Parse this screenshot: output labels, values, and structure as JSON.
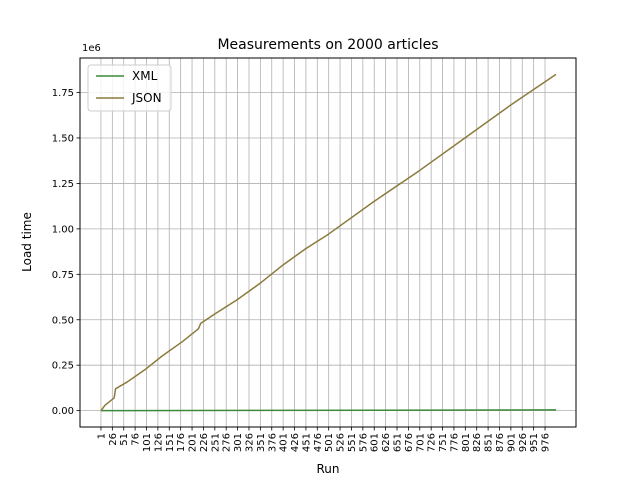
{
  "chart_data": {
    "type": "line",
    "title": "Measurements on 2000 articles",
    "xlabel": "Run",
    "ylabel": "Load time",
    "y_offset_label": "1e6",
    "x_tick_labels": [
      "1",
      "26",
      "51",
      "76",
      "101",
      "126",
      "151",
      "176",
      "201",
      "226",
      "251",
      "276",
      "301",
      "326",
      "351",
      "376",
      "401",
      "426",
      "451",
      "476",
      "501",
      "526",
      "551",
      "576",
      "601",
      "626",
      "651",
      "676",
      "701",
      "726",
      "751",
      "776",
      "801",
      "826",
      "851",
      "876",
      "901",
      "926",
      "951",
      "976"
    ],
    "y_tick_labels": [
      "0.00",
      "0.25",
      "0.50",
      "0.75",
      "1.00",
      "1.25",
      "1.50",
      "1.75"
    ],
    "y_ticks": [
      0,
      0.25,
      0.5,
      0.75,
      1.0,
      1.25,
      1.5,
      1.75
    ],
    "xlim": [
      -45,
      1044
    ],
    "ylim": [
      -0.09,
      1.94
    ],
    "grid": true,
    "legend_position": "top-left",
    "series": [
      {
        "name": "XML",
        "color": "#3a8a3a",
        "x": [
          1,
          1000
        ],
        "y": [
          0.0,
          0.004
        ]
      },
      {
        "name": "JSON",
        "color": "#8c7a3c",
        "x": [
          1,
          10,
          30,
          33,
          60,
          100,
          135,
          180,
          215,
          220,
          250,
          300,
          350,
          400,
          450,
          500,
          600,
          700,
          800,
          900,
          1000
        ],
        "y": [
          0.0,
          0.03,
          0.07,
          0.12,
          0.16,
          0.23,
          0.3,
          0.38,
          0.45,
          0.48,
          0.53,
          0.61,
          0.7,
          0.8,
          0.89,
          0.97,
          1.15,
          1.32,
          1.5,
          1.68,
          1.85
        ]
      }
    ]
  }
}
